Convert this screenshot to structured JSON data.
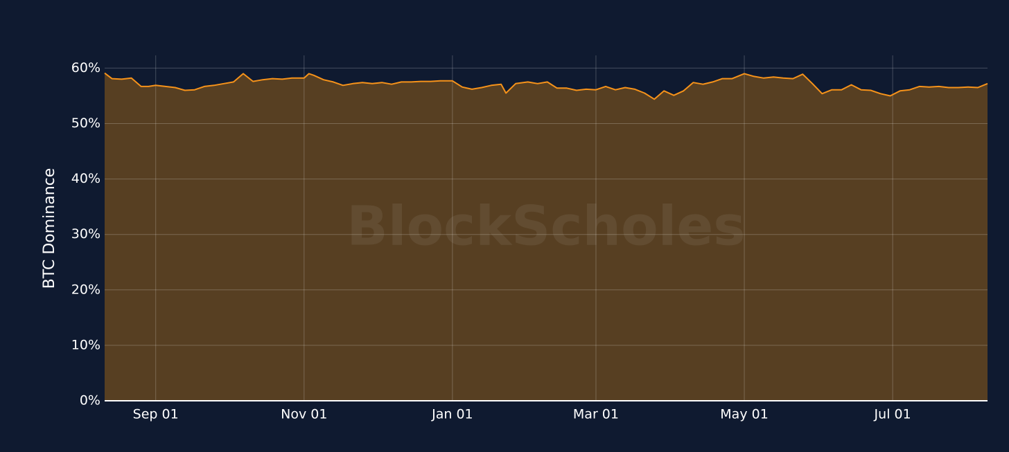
{
  "chart_data": {
    "type": "area",
    "watermark": "BlockScholes",
    "ylabel": "BTC Dominance",
    "x": [
      "Aug 11",
      "Aug 14",
      "Aug 18",
      "Aug 22",
      "Aug 26",
      "Aug 29",
      "Sep 01",
      "Sep 05",
      "Sep 09",
      "Sep 13",
      "Sep 17",
      "Sep 21",
      "Sep 25",
      "Sep 29",
      "Oct 03",
      "Oct 07",
      "Oct 11",
      "Oct 15",
      "Oct 19",
      "Oct 23",
      "Oct 27",
      "Nov 01",
      "Nov 03",
      "Nov 05",
      "Nov 09",
      "Nov 13",
      "Nov 17",
      "Nov 21",
      "Nov 25",
      "Nov 29",
      "Dec 03",
      "Dec 07",
      "Dec 11",
      "Dec 15",
      "Dec 19",
      "Dec 23",
      "Dec 27",
      "Jan 01",
      "Jan 05",
      "Jan 09",
      "Jan 13",
      "Jan 17",
      "Jan 21",
      "Jan 23",
      "Jan 27",
      "Feb 01",
      "Feb 05",
      "Feb 09",
      "Feb 13",
      "Feb 17",
      "Feb 21",
      "Feb 25",
      "Mar 01",
      "Mar 05",
      "Mar 09",
      "Mar 13",
      "Mar 17",
      "Mar 21",
      "Mar 25",
      "Mar 29",
      "Apr 02",
      "Apr 06",
      "Apr 10",
      "Apr 14",
      "Apr 18",
      "Apr 22",
      "Apr 26",
      "May 01",
      "May 05",
      "May 09",
      "May 13",
      "May 17",
      "May 21",
      "May 25",
      "May 29",
      "Jun 02",
      "Jun 06",
      "Jun 10",
      "Jun 14",
      "Jun 18",
      "Jun 22",
      "Jun 26",
      "Jun 30",
      "Jul 04",
      "Jul 08",
      "Jul 12",
      "Jul 16",
      "Jul 20",
      "Jul 24",
      "Jul 28",
      "Aug 01",
      "Aug 05",
      "Aug 09"
    ],
    "series": [
      {
        "name": "BTC Dominance",
        "color": "#f7931a",
        "fill": "#573f22",
        "values": [
          59.1,
          58.1,
          58.0,
          58.2,
          56.7,
          56.7,
          56.9,
          56.7,
          56.5,
          56.0,
          56.1,
          56.7,
          56.9,
          57.2,
          57.5,
          59.0,
          57.6,
          57.9,
          58.1,
          58.0,
          58.2,
          58.2,
          59.0,
          58.7,
          57.9,
          57.5,
          56.9,
          57.2,
          57.4,
          57.2,
          57.4,
          57.1,
          57.5,
          57.5,
          57.6,
          57.6,
          57.7,
          57.7,
          56.6,
          56.2,
          56.5,
          56.9,
          57.1,
          55.5,
          57.2,
          57.5,
          57.2,
          57.5,
          56.4,
          56.4,
          56.0,
          56.2,
          56.1,
          56.7,
          56.1,
          56.5,
          56.2,
          55.5,
          54.4,
          55.9,
          55.1,
          55.9,
          57.4,
          57.1,
          57.5,
          58.1,
          58.1,
          59.0,
          58.5,
          58.2,
          58.4,
          58.2,
          58.1,
          58.9,
          57.2,
          55.4,
          56.1,
          56.1,
          57.0,
          56.1,
          56.0,
          55.4,
          55.0,
          55.9,
          56.1,
          56.7,
          56.6,
          56.7,
          56.5,
          56.5,
          56.6,
          56.5,
          57.2
        ]
      }
    ],
    "xlim": [
      "Aug 11",
      "Aug 09"
    ],
    "xticks": [
      "Sep 01",
      "Nov 01",
      "Jan 01",
      "Mar 01",
      "May 01",
      "Jul 01"
    ],
    "ylim": [
      0,
      62.3
    ],
    "yticks": [
      {
        "value": 0,
        "label": "0%"
      },
      {
        "value": 10,
        "label": "10%"
      },
      {
        "value": 20,
        "label": "20%"
      },
      {
        "value": 30,
        "label": "30%"
      },
      {
        "value": 40,
        "label": "40%"
      },
      {
        "value": 50,
        "label": "50%"
      },
      {
        "value": 60,
        "label": "60%"
      }
    ],
    "grid": true
  }
}
